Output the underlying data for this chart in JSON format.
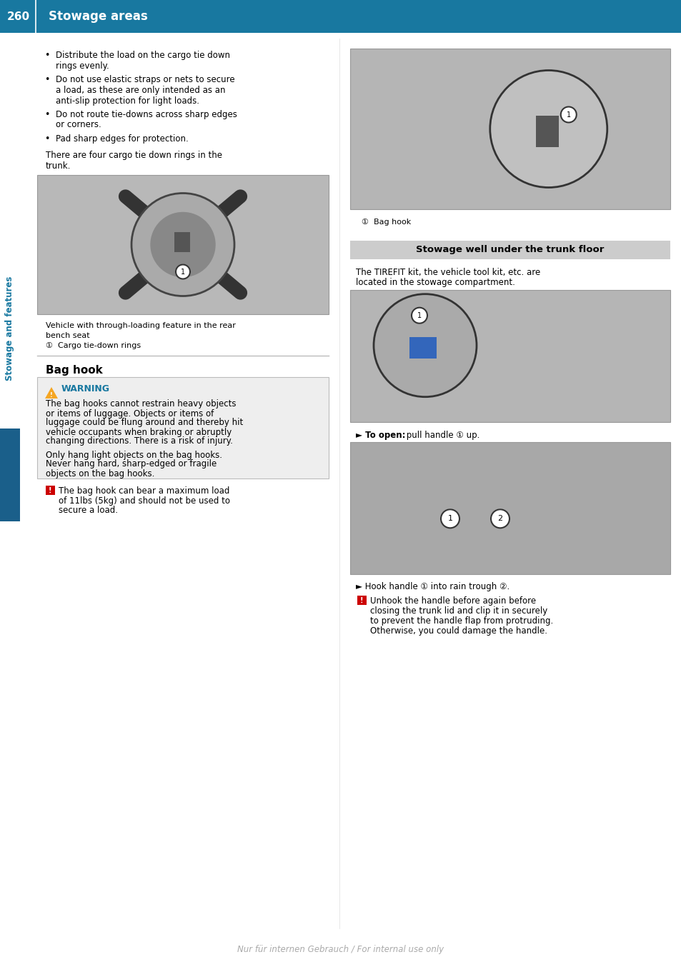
{
  "page_number": "260",
  "header_title": "Stowage areas",
  "header_bg_color": "#1878a0",
  "header_text_color": "#ffffff",
  "sidebar_text": "Stowage and features",
  "teal_color": "#1878a0",
  "page_bg": "#ffffff",
  "warning_bg": "#eeeeee",
  "warning_border": "#bbbbbb",
  "section_header_bg": "#cccccc",
  "blue_sidebar_color": "#1a5f8a",
  "bullet_items_left": [
    [
      "Distribute the load on the cargo tie down",
      "rings evenly."
    ],
    [
      "Do not use elastic straps or nets to secure",
      "a load, as these are only intended as an",
      "anti-slip protection for light loads."
    ],
    [
      "Do not route tie-downs across sharp edges",
      "or corners."
    ],
    [
      "Pad sharp edges for protection."
    ]
  ],
  "para_after_bullets": [
    "There are four cargo tie down rings in the",
    "trunk."
  ],
  "caption_img1_line1": "Vehicle with through-loading feature in the rear",
  "caption_img1_line2": "bench seat",
  "caption_img1_num": "①  Cargo tie-down rings",
  "section_bag_hook": "Bag hook",
  "warning_title": "WARNING",
  "warning_text_1": [
    "The bag hooks cannot restrain heavy objects",
    "or items of luggage. Objects or items of",
    "luggage could be flung around and thereby hit",
    "vehicle occupants when braking or abruptly",
    "changing directions. There is a risk of injury."
  ],
  "warning_text_2": [
    "Only hang light objects on the bag hooks.",
    "Never hang hard, sharp-edged or fragile",
    "objects on the bag hooks."
  ],
  "note_left": [
    "The bag hook can bear a maximum load",
    "of 11lbs (5kg) and should not be used to",
    "secure a load."
  ],
  "caption_right_1": "①  Bag hook",
  "section_stowage_well": "Stowage well under the trunk floor",
  "stowage_well_text": [
    "The TIREFIT kit, the vehicle tool kit, etc. are",
    "located in the stowage compartment."
  ],
  "to_open_text_bold": "► To open:",
  "to_open_text_rest": " pull handle ① up.",
  "hook_handle_bold": "► Hook handle",
  "hook_handle_rest": " ① into rain trough ②.",
  "note_right": [
    "Unhook the handle before again before",
    "closing the trunk lid and clip it in securely",
    "to prevent the handle flap from protruding.",
    "Otherwise, you could damage the handle."
  ],
  "watermark_text": "Nur für internen Gebrauch / For internal use only",
  "img_placeholder_color": "#b8b8b8",
  "img_border_color": "#999999"
}
